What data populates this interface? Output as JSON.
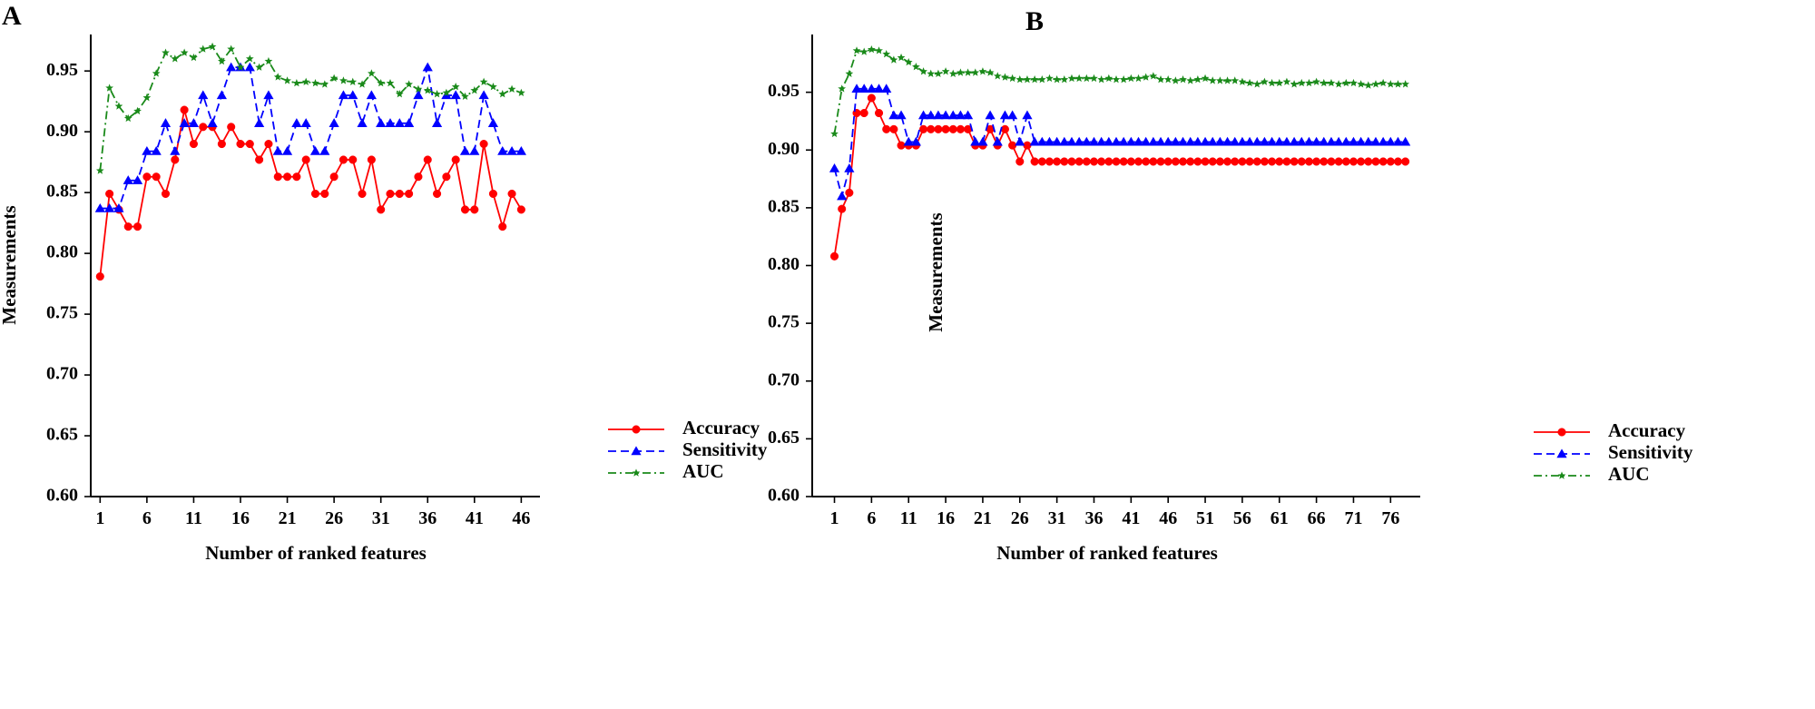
{
  "chart_data": [
    {
      "panel": "A",
      "type": "line",
      "xlabel": "Number of ranked features",
      "ylabel": "Measurements",
      "xlim": [
        0,
        48
      ],
      "ylim": [
        0.6,
        0.98
      ],
      "xticks": [
        1,
        6,
        11,
        16,
        21,
        26,
        31,
        36,
        41,
        46
      ],
      "yticks": [
        "0.60",
        "0.65",
        "0.70",
        "0.75",
        "0.80",
        "0.85",
        "0.90",
        "0.95"
      ],
      "legend_position": "bottom-right",
      "x": [
        1,
        2,
        3,
        4,
        5,
        6,
        7,
        8,
        9,
        10,
        11,
        12,
        13,
        14,
        15,
        16,
        17,
        18,
        19,
        20,
        21,
        22,
        23,
        24,
        25,
        26,
        27,
        28,
        29,
        30,
        31,
        32,
        33,
        34,
        35,
        36,
        37,
        38,
        39,
        40,
        41,
        42,
        43,
        44,
        45,
        46
      ],
      "series": [
        {
          "name": "Accuracy",
          "color": "#ff0000",
          "marker": "circle",
          "dash": "solid",
          "values": [
            0.781,
            0.849,
            0.836,
            0.822,
            0.822,
            0.863,
            0.863,
            0.849,
            0.877,
            0.918,
            0.89,
            0.904,
            0.904,
            0.89,
            0.904,
            0.89,
            0.89,
            0.877,
            0.89,
            0.863,
            0.863,
            0.863,
            0.877,
            0.849,
            0.849,
            0.863,
            0.877,
            0.877,
            0.849,
            0.877,
            0.836,
            0.849,
            0.849,
            0.849,
            0.863,
            0.877,
            0.849,
            0.863,
            0.877,
            0.836,
            0.836,
            0.89,
            0.849,
            0.822,
            0.849,
            0.836
          ]
        },
        {
          "name": "Sensitivity",
          "color": "#0000ff",
          "marker": "triangle",
          "dash": "dashed",
          "values": [
            0.837,
            0.837,
            0.837,
            0.86,
            0.86,
            0.884,
            0.884,
            0.907,
            0.884,
            0.907,
            0.907,
            0.93,
            0.907,
            0.93,
            0.953,
            0.953,
            0.953,
            0.907,
            0.93,
            0.884,
            0.884,
            0.907,
            0.907,
            0.884,
            0.884,
            0.907,
            0.93,
            0.93,
            0.907,
            0.93,
            0.907,
            0.907,
            0.907,
            0.907,
            0.93,
            0.953,
            0.907,
            0.93,
            0.93,
            0.884,
            0.884,
            0.93,
            0.907,
            0.884,
            0.884,
            0.884
          ]
        },
        {
          "name": "AUC",
          "color": "#1a8a1a",
          "marker": "star",
          "dash": "dashdot",
          "values": [
            0.868,
            0.936,
            0.921,
            0.911,
            0.917,
            0.928,
            0.948,
            0.965,
            0.96,
            0.965,
            0.961,
            0.968,
            0.97,
            0.958,
            0.968,
            0.953,
            0.96,
            0.953,
            0.958,
            0.945,
            0.942,
            0.94,
            0.941,
            0.94,
            0.939,
            0.944,
            0.942,
            0.941,
            0.939,
            0.948,
            0.94,
            0.94,
            0.931,
            0.939,
            0.935,
            0.934,
            0.931,
            0.932,
            0.937,
            0.929,
            0.934,
            0.941,
            0.937,
            0.931,
            0.935,
            0.932
          ]
        }
      ]
    },
    {
      "panel": "B",
      "type": "line",
      "xlabel": "Number of ranked features",
      "ylabel": "Measurements",
      "xlim": [
        -2,
        80
      ],
      "ylim": [
        0.6,
        1.0
      ],
      "xticks": [
        1,
        6,
        11,
        16,
        21,
        26,
        31,
        36,
        41,
        46,
        51,
        56,
        61,
        66,
        71,
        76
      ],
      "yticks": [
        "0.60",
        "0.65",
        "0.70",
        "0.75",
        "0.80",
        "0.85",
        "0.90",
        "0.95"
      ],
      "legend_position": "bottom-right",
      "x": [
        1,
        2,
        3,
        4,
        5,
        6,
        7,
        8,
        9,
        10,
        11,
        12,
        13,
        14,
        15,
        16,
        17,
        18,
        19,
        20,
        21,
        22,
        23,
        24,
        25,
        26,
        27,
        28,
        29,
        30,
        31,
        32,
        33,
        34,
        35,
        36,
        37,
        38,
        39,
        40,
        41,
        42,
        43,
        44,
        45,
        46,
        47,
        48,
        49,
        50,
        51,
        52,
        53,
        54,
        55,
        56,
        57,
        58,
        59,
        60,
        61,
        62,
        63,
        64,
        65,
        66,
        67,
        68,
        69,
        70,
        71,
        72,
        73,
        74,
        75,
        76,
        77,
        78
      ],
      "series": [
        {
          "name": "Accuracy",
          "color": "#ff0000",
          "marker": "circle",
          "dash": "solid",
          "values": [
            0.808,
            0.849,
            0.863,
            0.932,
            0.932,
            0.945,
            0.932,
            0.918,
            0.918,
            0.904,
            0.904,
            0.904,
            0.918,
            0.918,
            0.918,
            0.918,
            0.918,
            0.918,
            0.918,
            0.904,
            0.904,
            0.918,
            0.904,
            0.918,
            0.904,
            0.89,
            0.904,
            0.89,
            0.89,
            0.89,
            0.89,
            0.89,
            0.89,
            0.89,
            0.89,
            0.89,
            0.89,
            0.89,
            0.89,
            0.89,
            0.89,
            0.89,
            0.89,
            0.89,
            0.89,
            0.89,
            0.89,
            0.89,
            0.89,
            0.89,
            0.89,
            0.89,
            0.89,
            0.89,
            0.89,
            0.89,
            0.89,
            0.89,
            0.89,
            0.89,
            0.89,
            0.89,
            0.89,
            0.89,
            0.89,
            0.89,
            0.89,
            0.89,
            0.89,
            0.89,
            0.89,
            0.89,
            0.89,
            0.89,
            0.89,
            0.89,
            0.89,
            0.89
          ]
        },
        {
          "name": "Sensitivity",
          "color": "#0000ff",
          "marker": "triangle",
          "dash": "dashed",
          "values": [
            0.884,
            0.86,
            0.884,
            0.953,
            0.953,
            0.953,
            0.953,
            0.953,
            0.93,
            0.93,
            0.907,
            0.907,
            0.93,
            0.93,
            0.93,
            0.93,
            0.93,
            0.93,
            0.93,
            0.907,
            0.907,
            0.93,
            0.907,
            0.93,
            0.93,
            0.907,
            0.93,
            0.907,
            0.907,
            0.907,
            0.907,
            0.907,
            0.907,
            0.907,
            0.907,
            0.907,
            0.907,
            0.907,
            0.907,
            0.907,
            0.907,
            0.907,
            0.907,
            0.907,
            0.907,
            0.907,
            0.907,
            0.907,
            0.907,
            0.907,
            0.907,
            0.907,
            0.907,
            0.907,
            0.907,
            0.907,
            0.907,
            0.907,
            0.907,
            0.907,
            0.907,
            0.907,
            0.907,
            0.907,
            0.907,
            0.907,
            0.907,
            0.907,
            0.907,
            0.907,
            0.907,
            0.907,
            0.907,
            0.907,
            0.907,
            0.907,
            0.907,
            0.907
          ]
        },
        {
          "name": "AUC",
          "color": "#1a8a1a",
          "marker": "star",
          "dash": "dashdot",
          "values": [
            0.914,
            0.953,
            0.966,
            0.986,
            0.985,
            0.987,
            0.986,
            0.983,
            0.978,
            0.98,
            0.976,
            0.972,
            0.968,
            0.966,
            0.966,
            0.968,
            0.966,
            0.967,
            0.967,
            0.967,
            0.968,
            0.967,
            0.964,
            0.963,
            0.962,
            0.961,
            0.961,
            0.961,
            0.961,
            0.962,
            0.961,
            0.961,
            0.962,
            0.962,
            0.962,
            0.962,
            0.961,
            0.962,
            0.961,
            0.961,
            0.962,
            0.962,
            0.963,
            0.964,
            0.961,
            0.961,
            0.96,
            0.961,
            0.96,
            0.961,
            0.962,
            0.96,
            0.96,
            0.96,
            0.96,
            0.959,
            0.958,
            0.957,
            0.959,
            0.958,
            0.958,
            0.959,
            0.957,
            0.958,
            0.958,
            0.959,
            0.958,
            0.958,
            0.957,
            0.958,
            0.958,
            0.957,
            0.956,
            0.957,
            0.958,
            0.957,
            0.957,
            0.957
          ]
        }
      ]
    }
  ]
}
